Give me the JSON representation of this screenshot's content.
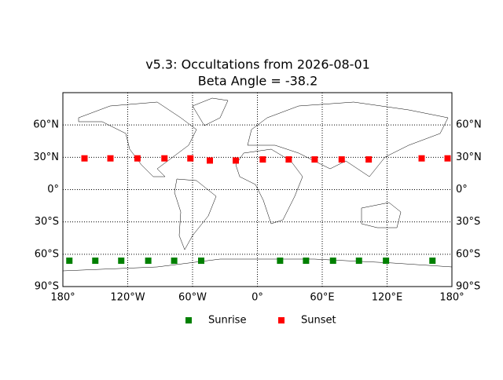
{
  "chart_data": {
    "type": "scatter",
    "title": "v5.3: Occultations from 2026-08-01",
    "subtitle": "Beta Angle = -38.2",
    "xlim": [
      -180,
      180
    ],
    "ylim": [
      -90,
      90
    ],
    "xticks": [
      {
        "value": -180,
        "label": "180°"
      },
      {
        "value": -120,
        "label": "120°W"
      },
      {
        "value": -60,
        "label": "60°W"
      },
      {
        "value": 0,
        "label": "0°"
      },
      {
        "value": 60,
        "label": "60°E"
      },
      {
        "value": 120,
        "label": "120°E"
      },
      {
        "value": 180,
        "label": "180°"
      }
    ],
    "yticks": [
      {
        "value": -90,
        "label": "90°S"
      },
      {
        "value": -60,
        "label": "60°S"
      },
      {
        "value": -30,
        "label": "30°S"
      },
      {
        "value": 0,
        "label": "0°"
      },
      {
        "value": 30,
        "label": "30°N"
      },
      {
        "value": 60,
        "label": "60°N"
      }
    ],
    "grid": true,
    "series": [
      {
        "name": "Sunrise",
        "color": "#008000",
        "x": [
          -174,
          -150,
          -126,
          -101,
          -77,
          -52,
          21,
          45,
          70,
          94,
          119,
          162
        ],
        "y": [
          -66,
          -66,
          -66,
          -66,
          -66,
          -66,
          -66,
          -66,
          -66,
          -66,
          -66,
          -66
        ]
      },
      {
        "name": "Sunset",
        "color": "#ff0000",
        "x": [
          -160,
          -136,
          -111,
          -86,
          -62,
          -44,
          -20,
          5,
          29,
          53,
          78,
          103,
          152,
          176
        ],
        "y": [
          29,
          29,
          29,
          29,
          29,
          27,
          27,
          28,
          28,
          28,
          28,
          28,
          29,
          29
        ]
      }
    ]
  }
}
